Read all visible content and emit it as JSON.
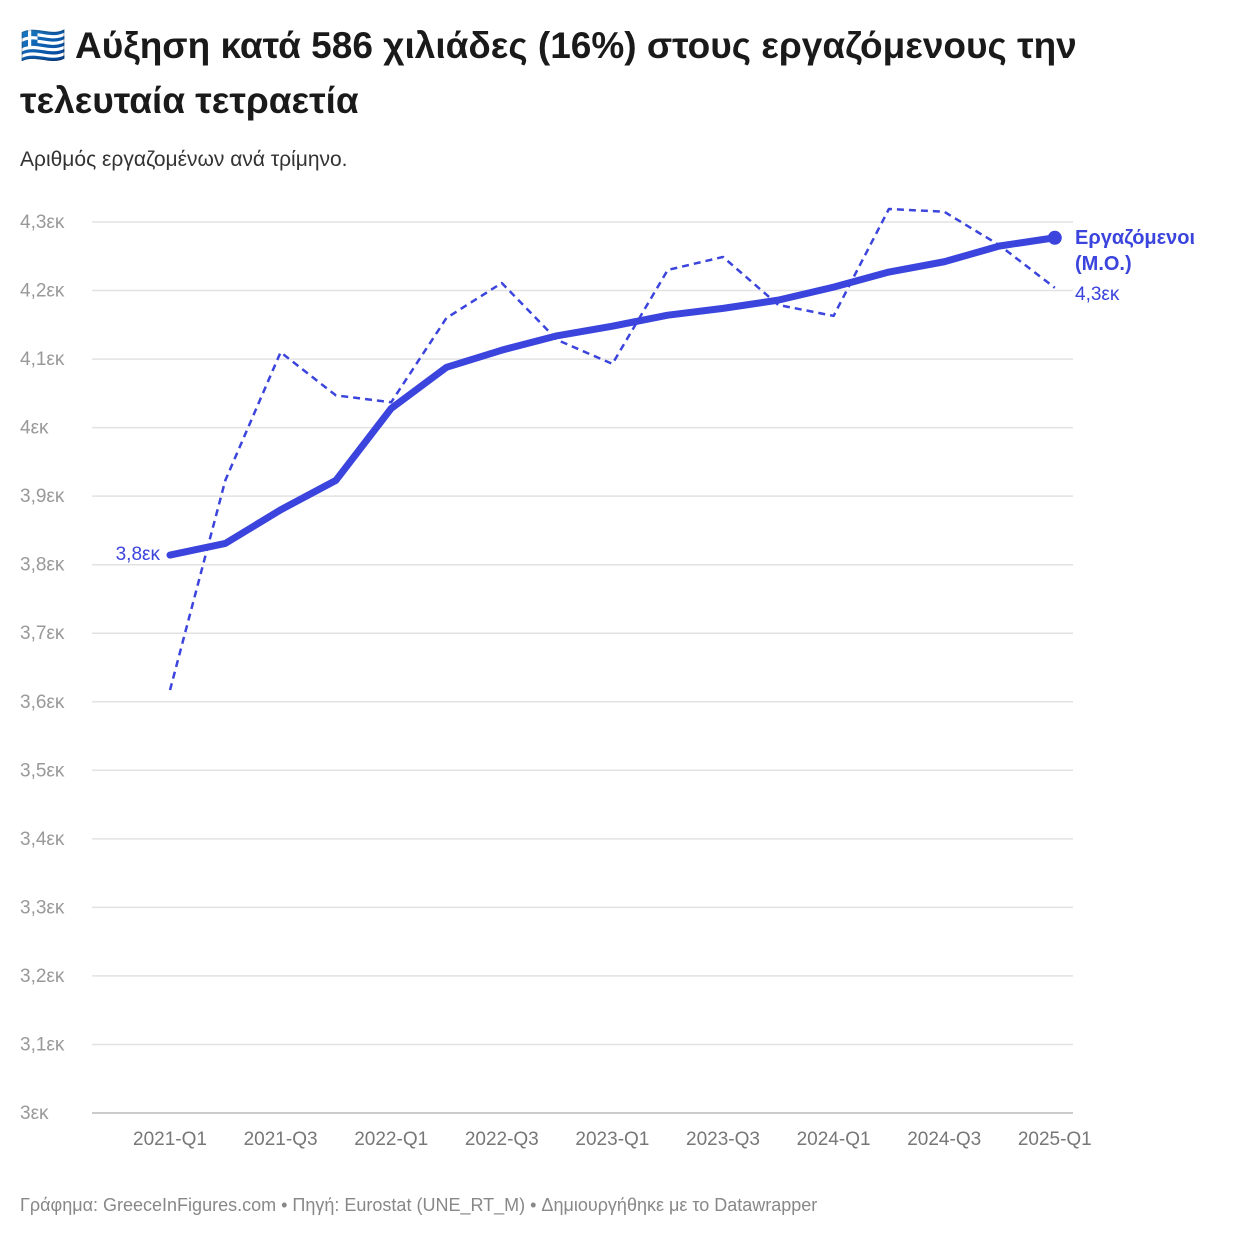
{
  "chart_data": {
    "type": "line",
    "title": "🇬🇷 Αύξηση κατά 586 χιλιάδες (16%) στους εργαζόμενους την τελευταία τετραετία",
    "subtitle": "Αριθμός εργαζομένων ανά τρίμηνο.",
    "footer": "Γράφημα: GreeceInFigures.com • Πηγή: Eurostat (UNE_RT_M) • Δημιουργήθηκε με το Datawrapper",
    "categories": [
      "2021-Q1",
      null,
      "2021-Q3",
      null,
      "2022-Q1",
      null,
      "2022-Q3",
      null,
      "2023-Q1",
      null,
      "2023-Q3",
      null,
      "2024-Q1",
      null,
      "2024-Q3",
      null,
      "2025-Q1"
    ],
    "series": [
      {
        "name": "Εργαζόμενοι (Μ.Ο.)",
        "color": "#3b44dc",
        "style": "solid",
        "values": [
          3.814,
          3.831,
          3.88,
          3.923,
          4.028,
          4.088,
          4.113,
          4.134,
          4.148,
          4.164,
          4.174,
          4.186,
          4.205,
          4.227,
          4.242,
          4.265,
          4.277
        ],
        "value_labels": [
          "3,8εκ",
          null,
          null,
          null,
          null,
          null,
          null,
          null,
          null,
          null,
          null,
          null,
          null,
          null,
          null,
          null,
          "4,3εκ"
        ]
      },
      {
        "color": "#3b44dc",
        "style": "dashed",
        "values": [
          3.617,
          3.923,
          4.11,
          4.047,
          4.037,
          4.16,
          4.211,
          4.128,
          4.093,
          4.23,
          4.249,
          4.179,
          4.163,
          4.319,
          4.315,
          4.266,
          4.204
        ]
      }
    ],
    "ylim": [
      3.0,
      4.3
    ],
    "yticks": [
      {
        "value": 3.0,
        "label": "3εκ"
      },
      {
        "value": 3.1,
        "label": "3,1εκ"
      },
      {
        "value": 3.2,
        "label": "3,2εκ"
      },
      {
        "value": 3.3,
        "label": "3,3εκ"
      },
      {
        "value": 3.4,
        "label": "3,4εκ"
      },
      {
        "value": 3.5,
        "label": "3,5εκ"
      },
      {
        "value": 3.6,
        "label": "3,6εκ"
      },
      {
        "value": 3.7,
        "label": "3,7εκ"
      },
      {
        "value": 3.8,
        "label": "3,8εκ"
      },
      {
        "value": 3.9,
        "label": "3,9εκ"
      },
      {
        "value": 4.0,
        "label": "4εκ"
      },
      {
        "value": 4.1,
        "label": "4,1εκ"
      },
      {
        "value": 4.2,
        "label": "4,2εκ"
      },
      {
        "value": 4.3,
        "label": "4,3εκ"
      }
    ],
    "grid": true
  }
}
